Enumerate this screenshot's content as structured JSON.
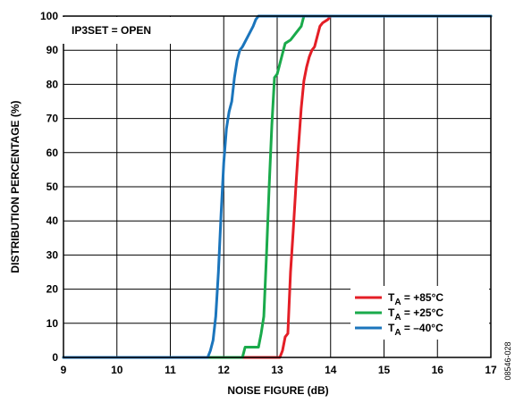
{
  "chart_data": {
    "type": "line",
    "annotation": "IP3SET = OPEN",
    "xlabel": "NOISE FIGURE (dB)",
    "ylabel": "DISTRIBUTION PERCENTAGE (%)",
    "xlim": [
      9,
      17
    ],
    "ylim": [
      0,
      100
    ],
    "x_ticks": [
      "9",
      "10",
      "11",
      "12",
      "13",
      "14",
      "15",
      "16",
      "17"
    ],
    "y_ticks": [
      "0",
      "10",
      "20",
      "30",
      "40",
      "50",
      "60",
      "70",
      "80",
      "90",
      "100"
    ],
    "grid": true,
    "legend_position": "bottom-right",
    "series": [
      {
        "name": "TA = +85°C",
        "label_main": "T",
        "label_sub": "A",
        "label_rest": " = +85°C",
        "color": "#e41e26",
        "points": [
          [
            9,
            0
          ],
          [
            13.05,
            0
          ],
          [
            13.1,
            2
          ],
          [
            13.15,
            6
          ],
          [
            13.2,
            7
          ],
          [
            13.25,
            25
          ],
          [
            13.3,
            37
          ],
          [
            13.35,
            50
          ],
          [
            13.4,
            62
          ],
          [
            13.45,
            73
          ],
          [
            13.5,
            81
          ],
          [
            13.55,
            85
          ],
          [
            13.6,
            88
          ],
          [
            13.65,
            90
          ],
          [
            13.7,
            91
          ],
          [
            13.75,
            94
          ],
          [
            13.8,
            97
          ],
          [
            13.85,
            98
          ],
          [
            13.95,
            99
          ],
          [
            14.0,
            100
          ],
          [
            17,
            100
          ]
        ]
      },
      {
        "name": "TA = +25°C",
        "label_main": "T",
        "label_sub": "A",
        "label_rest": " = +25°C",
        "color": "#1aaa4b",
        "points": [
          [
            9,
            0
          ],
          [
            12.35,
            0
          ],
          [
            12.4,
            3
          ],
          [
            12.65,
            3
          ],
          [
            12.7,
            7
          ],
          [
            12.75,
            12
          ],
          [
            12.8,
            30
          ],
          [
            12.85,
            50
          ],
          [
            12.9,
            68
          ],
          [
            12.95,
            82
          ],
          [
            13.0,
            83
          ],
          [
            13.05,
            86
          ],
          [
            13.1,
            89
          ],
          [
            13.15,
            92
          ],
          [
            13.25,
            93
          ],
          [
            13.35,
            95
          ],
          [
            13.45,
            97
          ],
          [
            13.5,
            100
          ],
          [
            17,
            100
          ]
        ]
      },
      {
        "name": "TA = –40°C",
        "label_main": "T",
        "label_sub": "A",
        "label_rest": " = –40°C",
        "color": "#1b75bc",
        "points": [
          [
            9,
            0
          ],
          [
            11.7,
            0
          ],
          [
            11.75,
            2
          ],
          [
            11.8,
            5
          ],
          [
            11.85,
            12
          ],
          [
            11.9,
            25
          ],
          [
            11.95,
            42
          ],
          [
            12.0,
            57
          ],
          [
            12.05,
            67
          ],
          [
            12.1,
            72
          ],
          [
            12.15,
            75
          ],
          [
            12.2,
            82
          ],
          [
            12.25,
            87
          ],
          [
            12.3,
            90
          ],
          [
            12.35,
            91
          ],
          [
            12.45,
            94
          ],
          [
            12.55,
            97
          ],
          [
            12.6,
            99
          ],
          [
            12.65,
            100
          ],
          [
            17,
            100
          ]
        ]
      }
    ]
  },
  "side_code": "08546-028"
}
